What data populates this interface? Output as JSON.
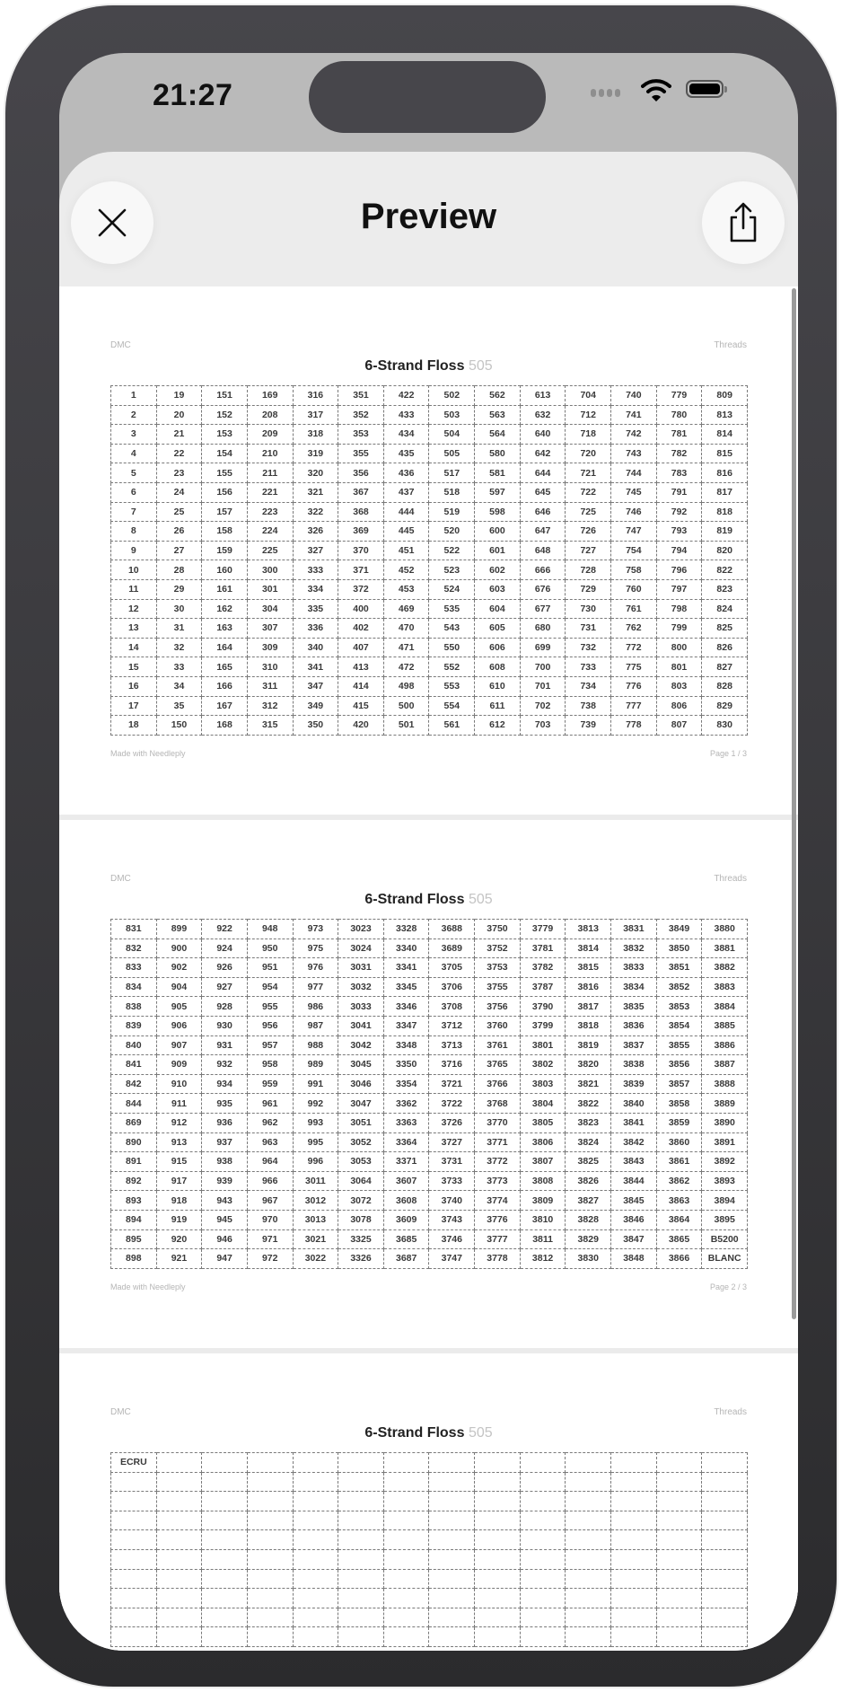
{
  "status_bar": {
    "time": "21:27"
  },
  "header": {
    "title": "Preview",
    "close_icon": "close-icon",
    "share_icon": "share-icon"
  },
  "pages": [
    {
      "brand": "DMC",
      "kind": "Threads",
      "title": "6-Strand Floss",
      "title_number": "505",
      "footer_left": "Made with Needleply",
      "footer_right": "Page 1 / 3",
      "rows": [
        [
          "1",
          "19",
          "151",
          "169",
          "316",
          "351",
          "422",
          "502",
          "562",
          "613",
          "704",
          "740",
          "779",
          "809"
        ],
        [
          "2",
          "20",
          "152",
          "208",
          "317",
          "352",
          "433",
          "503",
          "563",
          "632",
          "712",
          "741",
          "780",
          "813"
        ],
        [
          "3",
          "21",
          "153",
          "209",
          "318",
          "353",
          "434",
          "504",
          "564",
          "640",
          "718",
          "742",
          "781",
          "814"
        ],
        [
          "4",
          "22",
          "154",
          "210",
          "319",
          "355",
          "435",
          "505",
          "580",
          "642",
          "720",
          "743",
          "782",
          "815"
        ],
        [
          "5",
          "23",
          "155",
          "211",
          "320",
          "356",
          "436",
          "517",
          "581",
          "644",
          "721",
          "744",
          "783",
          "816"
        ],
        [
          "6",
          "24",
          "156",
          "221",
          "321",
          "367",
          "437",
          "518",
          "597",
          "645",
          "722",
          "745",
          "791",
          "817"
        ],
        [
          "7",
          "25",
          "157",
          "223",
          "322",
          "368",
          "444",
          "519",
          "598",
          "646",
          "725",
          "746",
          "792",
          "818"
        ],
        [
          "8",
          "26",
          "158",
          "224",
          "326",
          "369",
          "445",
          "520",
          "600",
          "647",
          "726",
          "747",
          "793",
          "819"
        ],
        [
          "9",
          "27",
          "159",
          "225",
          "327",
          "370",
          "451",
          "522",
          "601",
          "648",
          "727",
          "754",
          "794",
          "820"
        ],
        [
          "10",
          "28",
          "160",
          "300",
          "333",
          "371",
          "452",
          "523",
          "602",
          "666",
          "728",
          "758",
          "796",
          "822"
        ],
        [
          "11",
          "29",
          "161",
          "301",
          "334",
          "372",
          "453",
          "524",
          "603",
          "676",
          "729",
          "760",
          "797",
          "823"
        ],
        [
          "12",
          "30",
          "162",
          "304",
          "335",
          "400",
          "469",
          "535",
          "604",
          "677",
          "730",
          "761",
          "798",
          "824"
        ],
        [
          "13",
          "31",
          "163",
          "307",
          "336",
          "402",
          "470",
          "543",
          "605",
          "680",
          "731",
          "762",
          "799",
          "825"
        ],
        [
          "14",
          "32",
          "164",
          "309",
          "340",
          "407",
          "471",
          "550",
          "606",
          "699",
          "732",
          "772",
          "800",
          "826"
        ],
        [
          "15",
          "33",
          "165",
          "310",
          "341",
          "413",
          "472",
          "552",
          "608",
          "700",
          "733",
          "775",
          "801",
          "827"
        ],
        [
          "16",
          "34",
          "166",
          "311",
          "347",
          "414",
          "498",
          "553",
          "610",
          "701",
          "734",
          "776",
          "803",
          "828"
        ],
        [
          "17",
          "35",
          "167",
          "312",
          "349",
          "415",
          "500",
          "554",
          "611",
          "702",
          "738",
          "777",
          "806",
          "829"
        ],
        [
          "18",
          "150",
          "168",
          "315",
          "350",
          "420",
          "501",
          "561",
          "612",
          "703",
          "739",
          "778",
          "807",
          "830"
        ]
      ]
    },
    {
      "brand": "DMC",
      "kind": "Threads",
      "title": "6-Strand Floss",
      "title_number": "505",
      "footer_left": "Made with Needleply",
      "footer_right": "Page 2 / 3",
      "rows": [
        [
          "831",
          "899",
          "922",
          "948",
          "973",
          "3023",
          "3328",
          "3688",
          "3750",
          "3779",
          "3813",
          "3831",
          "3849",
          "3880"
        ],
        [
          "832",
          "900",
          "924",
          "950",
          "975",
          "3024",
          "3340",
          "3689",
          "3752",
          "3781",
          "3814",
          "3832",
          "3850",
          "3881"
        ],
        [
          "833",
          "902",
          "926",
          "951",
          "976",
          "3031",
          "3341",
          "3705",
          "3753",
          "3782",
          "3815",
          "3833",
          "3851",
          "3882"
        ],
        [
          "834",
          "904",
          "927",
          "954",
          "977",
          "3032",
          "3345",
          "3706",
          "3755",
          "3787",
          "3816",
          "3834",
          "3852",
          "3883"
        ],
        [
          "838",
          "905",
          "928",
          "955",
          "986",
          "3033",
          "3346",
          "3708",
          "3756",
          "3790",
          "3817",
          "3835",
          "3853",
          "3884"
        ],
        [
          "839",
          "906",
          "930",
          "956",
          "987",
          "3041",
          "3347",
          "3712",
          "3760",
          "3799",
          "3818",
          "3836",
          "3854",
          "3885"
        ],
        [
          "840",
          "907",
          "931",
          "957",
          "988",
          "3042",
          "3348",
          "3713",
          "3761",
          "3801",
          "3819",
          "3837",
          "3855",
          "3886"
        ],
        [
          "841",
          "909",
          "932",
          "958",
          "989",
          "3045",
          "3350",
          "3716",
          "3765",
          "3802",
          "3820",
          "3838",
          "3856",
          "3887"
        ],
        [
          "842",
          "910",
          "934",
          "959",
          "991",
          "3046",
          "3354",
          "3721",
          "3766",
          "3803",
          "3821",
          "3839",
          "3857",
          "3888"
        ],
        [
          "844",
          "911",
          "935",
          "961",
          "992",
          "3047",
          "3362",
          "3722",
          "3768",
          "3804",
          "3822",
          "3840",
          "3858",
          "3889"
        ],
        [
          "869",
          "912",
          "936",
          "962",
          "993",
          "3051",
          "3363",
          "3726",
          "3770",
          "3805",
          "3823",
          "3841",
          "3859",
          "3890"
        ],
        [
          "890",
          "913",
          "937",
          "963",
          "995",
          "3052",
          "3364",
          "3727",
          "3771",
          "3806",
          "3824",
          "3842",
          "3860",
          "3891"
        ],
        [
          "891",
          "915",
          "938",
          "964",
          "996",
          "3053",
          "3371",
          "3731",
          "3772",
          "3807",
          "3825",
          "3843",
          "3861",
          "3892"
        ],
        [
          "892",
          "917",
          "939",
          "966",
          "3011",
          "3064",
          "3607",
          "3733",
          "3773",
          "3808",
          "3826",
          "3844",
          "3862",
          "3893"
        ],
        [
          "893",
          "918",
          "943",
          "967",
          "3012",
          "3072",
          "3608",
          "3740",
          "3774",
          "3809",
          "3827",
          "3845",
          "3863",
          "3894"
        ],
        [
          "894",
          "919",
          "945",
          "970",
          "3013",
          "3078",
          "3609",
          "3743",
          "3776",
          "3810",
          "3828",
          "3846",
          "3864",
          "3895"
        ],
        [
          "895",
          "920",
          "946",
          "971",
          "3021",
          "3325",
          "3685",
          "3746",
          "3777",
          "3811",
          "3829",
          "3847",
          "3865",
          "B5200"
        ],
        [
          "898",
          "921",
          "947",
          "972",
          "3022",
          "3326",
          "3687",
          "3747",
          "3778",
          "3812",
          "3830",
          "3848",
          "3866",
          "BLANC"
        ]
      ]
    },
    {
      "brand": "DMC",
      "kind": "Threads",
      "title": "6-Strand Floss",
      "title_number": "505",
      "rows": [
        [
          "ECRU",
          "",
          "",
          "",
          "",
          "",
          "",
          "",
          "",
          "",
          "",
          "",
          "",
          ""
        ],
        [
          "",
          "",
          "",
          "",
          "",
          "",
          "",
          "",
          "",
          "",
          "",
          "",
          "",
          ""
        ],
        [
          "",
          "",
          "",
          "",
          "",
          "",
          "",
          "",
          "",
          "",
          "",
          "",
          "",
          ""
        ],
        [
          "",
          "",
          "",
          "",
          "",
          "",
          "",
          "",
          "",
          "",
          "",
          "",
          "",
          ""
        ],
        [
          "",
          "",
          "",
          "",
          "",
          "",
          "",
          "",
          "",
          "",
          "",
          "",
          "",
          ""
        ],
        [
          "",
          "",
          "",
          "",
          "",
          "",
          "",
          "",
          "",
          "",
          "",
          "",
          "",
          ""
        ],
        [
          "",
          "",
          "",
          "",
          "",
          "",
          "",
          "",
          "",
          "",
          "",
          "",
          "",
          ""
        ],
        [
          "",
          "",
          "",
          "",
          "",
          "",
          "",
          "",
          "",
          "",
          "",
          "",
          "",
          ""
        ],
        [
          "",
          "",
          "",
          "",
          "",
          "",
          "",
          "",
          "",
          "",
          "",
          "",
          "",
          ""
        ],
        [
          "",
          "",
          "",
          "",
          "",
          "",
          "",
          "",
          "",
          "",
          "",
          "",
          "",
          ""
        ]
      ]
    }
  ]
}
